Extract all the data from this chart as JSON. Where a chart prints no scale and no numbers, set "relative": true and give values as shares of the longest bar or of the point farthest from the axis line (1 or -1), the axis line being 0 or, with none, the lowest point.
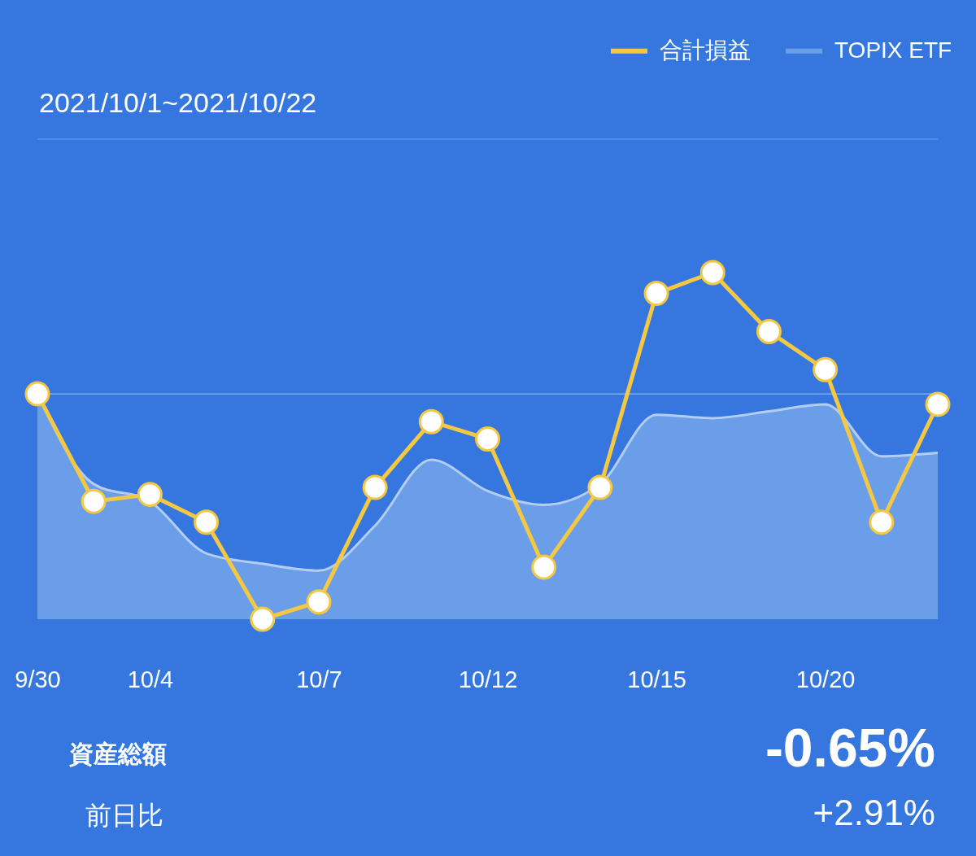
{
  "chart_data": {
    "type": "line",
    "subtitle": "2021/10/1~2021/10/22",
    "categories": [
      "9/30",
      null,
      "10/4",
      null,
      null,
      "10/7",
      null,
      null,
      "10/12",
      null,
      null,
      "10/15",
      null,
      null,
      "10/20",
      null,
      null
    ],
    "relative": true,
    "tick_labels": "x",
    "legend": "top right",
    "marker": "circle",
    "line_style": "solid",
    "series": [
      {
        "name": "合計損益",
        "color": "#f4c842",
        "values": [
          0.65,
          0.34,
          0.36,
          0.28,
          0,
          0.05,
          0.38,
          0.57,
          0.52,
          0.15,
          0.38,
          0.94,
          1,
          0.83,
          0.72,
          0.28,
          0.62
        ]
      },
      {
        "name": "TOPIX ETF",
        "type": "area",
        "marker": "none",
        "color": "#6a9ee8",
        "values": [
          0.65,
          0.39,
          0.34,
          0.19,
          0.16,
          0.14,
          0.27,
          0.46,
          0.37,
          0.33,
          0.39,
          0.59,
          0.58,
          0.6,
          0.62,
          0.47,
          0.48
        ]
      }
    ],
    "ref_lines": [
      {
        "axis": "y",
        "value": 0.65,
        "color": "#8fb6f0"
      }
    ],
    "annotations": [
      "資産総額",
      "前日比",
      "-0.65%",
      "+2.91%"
    ]
  }
}
